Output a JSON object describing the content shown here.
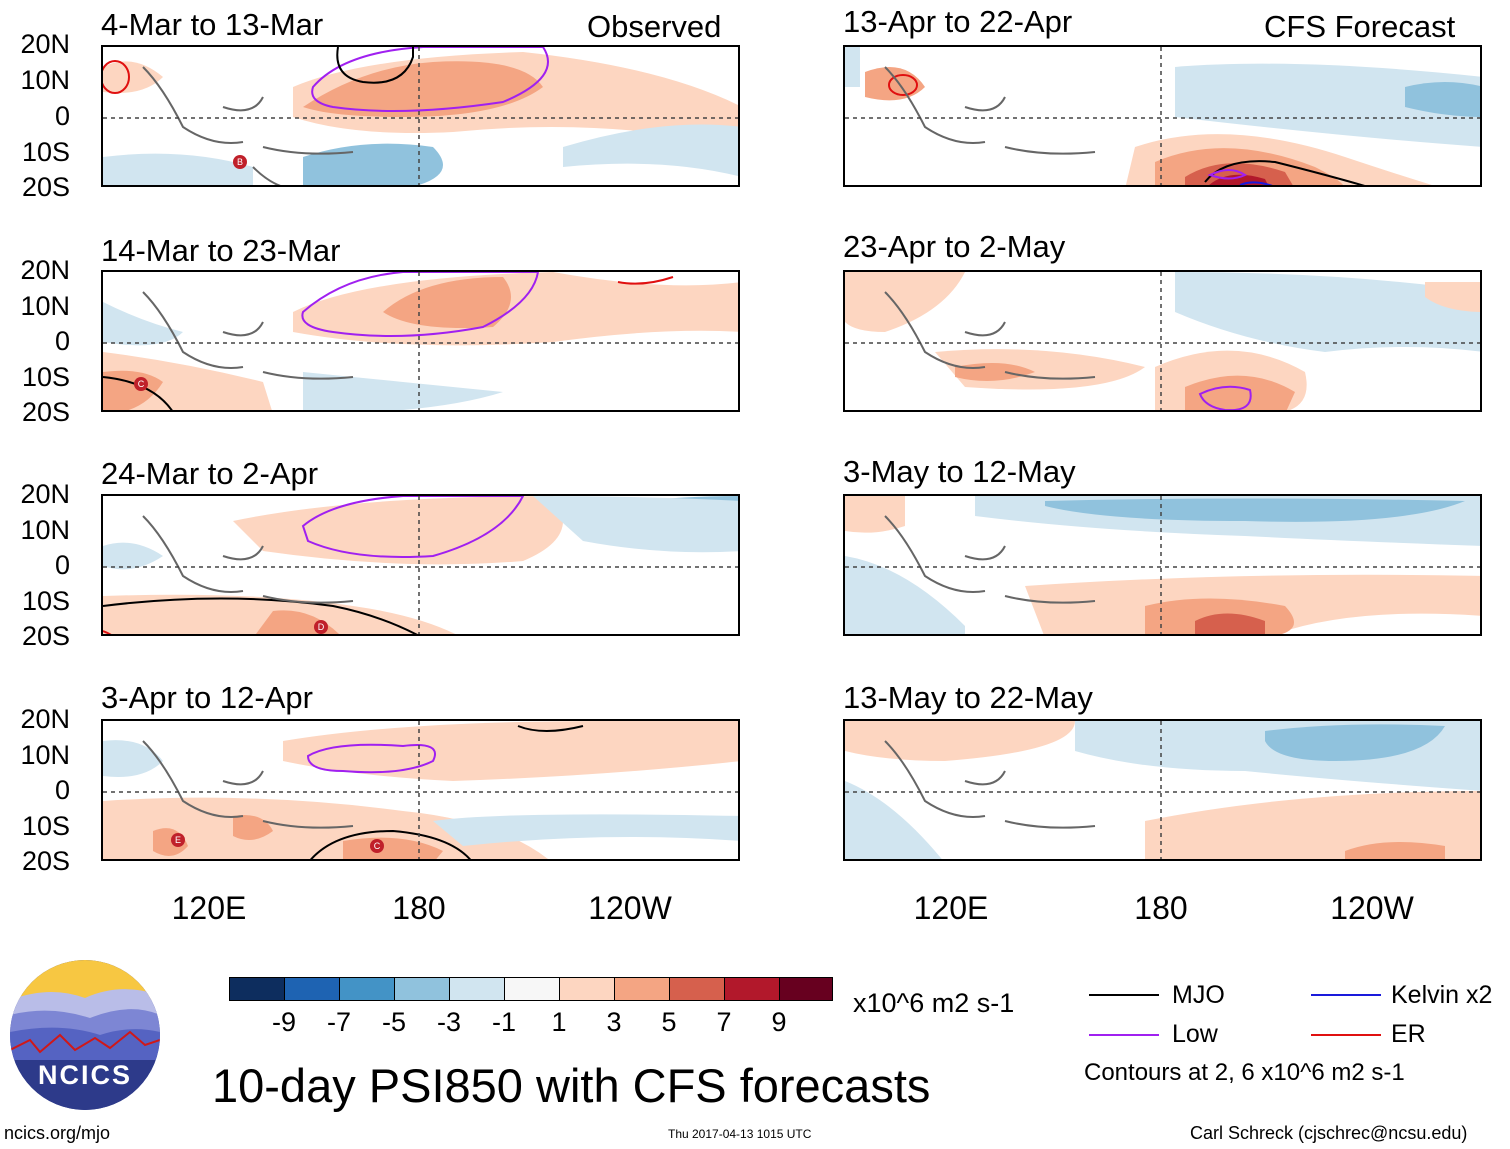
{
  "panels": [
    {
      "period": "4-Mar to 13-Mar",
      "tag": "Observed"
    },
    {
      "period": "13-Apr to 22-Apr",
      "tag": "CFS Forecast"
    },
    {
      "period": "14-Mar to 23-Mar",
      "tag": ""
    },
    {
      "period": "23-Apr to 2-May",
      "tag": ""
    },
    {
      "period": "24-Mar to 2-Apr",
      "tag": ""
    },
    {
      "period": "3-May to 12-May",
      "tag": ""
    },
    {
      "period": "3-Apr to 12-Apr",
      "tag": ""
    },
    {
      "period": "13-May to 22-May",
      "tag": ""
    }
  ],
  "y_axis": [
    "20N",
    "10N",
    "0",
    "10S",
    "20S"
  ],
  "x_axis": [
    "120E",
    "180",
    "120W"
  ],
  "storm_markers": [
    "B",
    "C",
    "D",
    "E",
    "C"
  ],
  "colorbar": {
    "labels": [
      "-9",
      "-7",
      "-5",
      "-3",
      "-1",
      "1",
      "3",
      "5",
      "7",
      "9"
    ],
    "colors": [
      "#0d2d5e",
      "#1e63b2",
      "#4393c6",
      "#90c2dd",
      "#d1e5f0",
      "#f7f7f7",
      "#fdd6c1",
      "#f4a583",
      "#d6604d",
      "#b2182b",
      "#67001f"
    ],
    "units": "x10^6 m2 s-1"
  },
  "legend": {
    "items": [
      {
        "label": "MJO",
        "color": "#000000"
      },
      {
        "label": "Kelvin x2",
        "color": "#1a1adb"
      },
      {
        "label": "Low",
        "color": "#a020f0"
      },
      {
        "label": "ER",
        "color": "#e01010"
      }
    ],
    "note": "Contours at 2, 6 x10^6 m2 s-1"
  },
  "title": "10-day PSI850 with CFS forecasts",
  "footer": {
    "url": "ncics.org/mjo",
    "timestamp": "Thu 2017-04-13 1015 UTC",
    "credit": "Carl Schreck (cjschrec@ncsu.edu)"
  },
  "logo": {
    "text": "NCICS"
  }
}
